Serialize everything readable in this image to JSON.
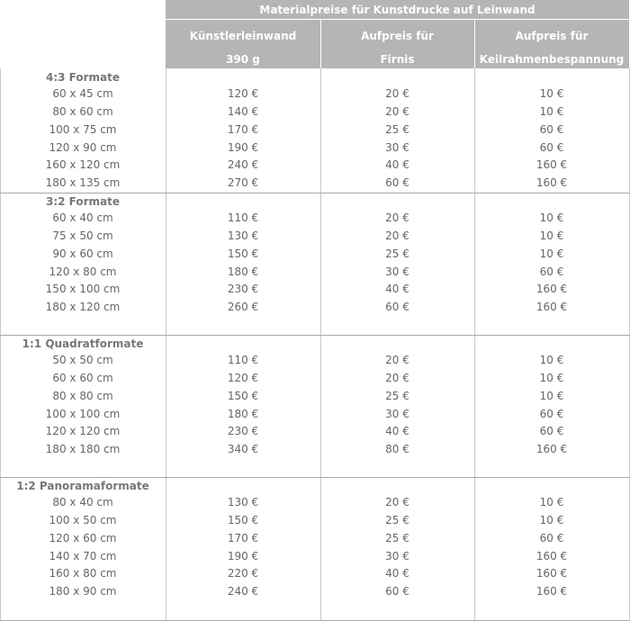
{
  "header": {
    "title": "Materialpreise für Kunstdrucke auf Leinwand",
    "columns": [
      {
        "line1": "Künstlerleinwand",
        "line2": "390 g"
      },
      {
        "line1": "Aufpreis für",
        "line2": "Firnis"
      },
      {
        "line1": "Aufpreis für",
        "line2": "Keilrahmenbespannung"
      }
    ]
  },
  "groups": [
    {
      "title": "4:3 Formate",
      "rows": [
        {
          "size": "60 x 45 cm",
          "price": "120 €",
          "firnis": "20 €",
          "keilrahmen": "10 €"
        },
        {
          "size": "80 x 60 cm",
          "price": "140 €",
          "firnis": "20 €",
          "keilrahmen": "10 €"
        },
        {
          "size": "100 x 75 cm",
          "price": "170 €",
          "firnis": "25 €",
          "keilrahmen": "60 €"
        },
        {
          "size": "120 x 90 cm",
          "price": "190 €",
          "firnis": "30 €",
          "keilrahmen": "60 €"
        },
        {
          "size": "160 x 120 cm",
          "price": "240 €",
          "firnis": "40 €",
          "keilrahmen": "160 €"
        },
        {
          "size": "180 x 135 cm",
          "price": "270 €",
          "firnis": "60 €",
          "keilrahmen": "160 €"
        }
      ]
    },
    {
      "title": "3:2 Formate",
      "rows": [
        {
          "size": "60 x 40 cm",
          "price": "110 €",
          "firnis": "20 €",
          "keilrahmen": "10 €"
        },
        {
          "size": "75 x 50 cm",
          "price": "130 €",
          "firnis": "20 €",
          "keilrahmen": "10 €"
        },
        {
          "size": "90 x 60 cm",
          "price": "150 €",
          "firnis": "25 €",
          "keilrahmen": "10 €"
        },
        {
          "size": "120 x 80 cm",
          "price": "180 €",
          "firnis": "30 €",
          "keilrahmen": "60 €"
        },
        {
          "size": "150 x 100 cm",
          "price": "230 €",
          "firnis": "40 €",
          "keilrahmen": "160 €"
        },
        {
          "size": "180 x 120 cm",
          "price": "260 €",
          "firnis": "60 €",
          "keilrahmen": "160 €"
        }
      ]
    },
    {
      "title": "1:1 Quadratformate",
      "rows": [
        {
          "size": "50 x 50 cm",
          "price": "110 €",
          "firnis": "20 €",
          "keilrahmen": "10 €"
        },
        {
          "size": "60 x 60 cm",
          "price": "120 €",
          "firnis": "20 €",
          "keilrahmen": "10 €"
        },
        {
          "size": "80 x 80 cm",
          "price": "150 €",
          "firnis": "25 €",
          "keilrahmen": "10 €"
        },
        {
          "size": "100 x 100 cm",
          "price": "180 €",
          "firnis": "30 €",
          "keilrahmen": "60 €"
        },
        {
          "size": "120 x 120 cm",
          "price": "230 €",
          "firnis": "40 €",
          "keilrahmen": "60 €"
        },
        {
          "size": "180 x 180 cm",
          "price": "340 €",
          "firnis": "80 €",
          "keilrahmen": "160 €"
        }
      ]
    },
    {
      "title": "1:2 Panoramaformate",
      "rows": [
        {
          "size": "80 x 40 cm",
          "price": "130 €",
          "firnis": "20 €",
          "keilrahmen": "10 €"
        },
        {
          "size": "100 x 50 cm",
          "price": "150 €",
          "firnis": "25 €",
          "keilrahmen": "10 €"
        },
        {
          "size": "120 x 60 cm",
          "price": "170 €",
          "firnis": "25 €",
          "keilrahmen": "60 €"
        },
        {
          "size": "140 x 70 cm",
          "price": "190 €",
          "firnis": "30 €",
          "keilrahmen": "160 €"
        },
        {
          "size": "160 x 80 cm",
          "price": "220 €",
          "firnis": "40 €",
          "keilrahmen": "160 €"
        },
        {
          "size": "180 x 90 cm",
          "price": "240 €",
          "firnis": "60 €",
          "keilrahmen": "160 €"
        }
      ]
    }
  ]
}
